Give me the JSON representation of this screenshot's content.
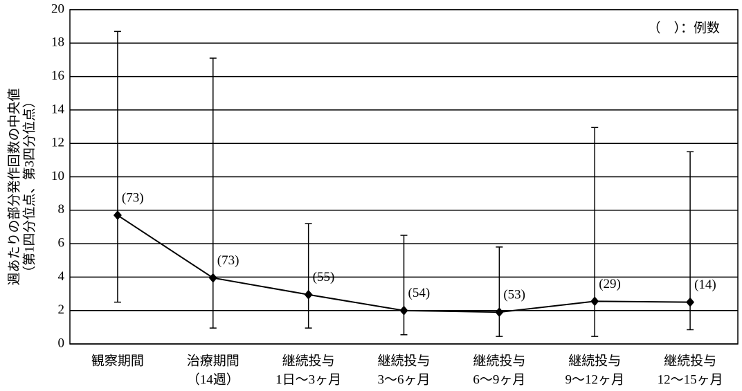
{
  "chart_data": {
    "type": "line",
    "y_label": [
      "週あたりの部分発作回数の中央値",
      "（第1四分位点、第3四分位点）"
    ],
    "annotation": "（　）：例数",
    "categories": [
      [
        "観察期間"
      ],
      [
        "治療期間",
        "（14週）"
      ],
      [
        "継続投与",
        "1日～3ヶ月"
      ],
      [
        "継続投与",
        "3～6ヶ月"
      ],
      [
        "継続投与",
        "6～9ヶ月"
      ],
      [
        "継続投与",
        "9～12ヶ月"
      ],
      [
        "継続投与",
        "12～15ヶ月"
      ]
    ],
    "values": [
      7.7,
      3.95,
      2.95,
      2.0,
      1.9,
      2.55,
      2.5
    ],
    "low": [
      2.5,
      0.95,
      0.95,
      0.55,
      0.45,
      0.45,
      0.85
    ],
    "high": [
      18.7,
      17.1,
      7.2,
      6.5,
      5.8,
      12.95,
      11.5
    ],
    "point_labels": [
      "(73)",
      "(73)",
      "(55)",
      "(54)",
      "(53)",
      "(29)",
      "(14)"
    ],
    "color": "#000000",
    "ylim": [
      0,
      20
    ],
    "yticks": [
      0,
      2,
      4,
      6,
      8,
      10,
      12,
      14,
      16,
      18,
      20
    ],
    "grid": true
  }
}
